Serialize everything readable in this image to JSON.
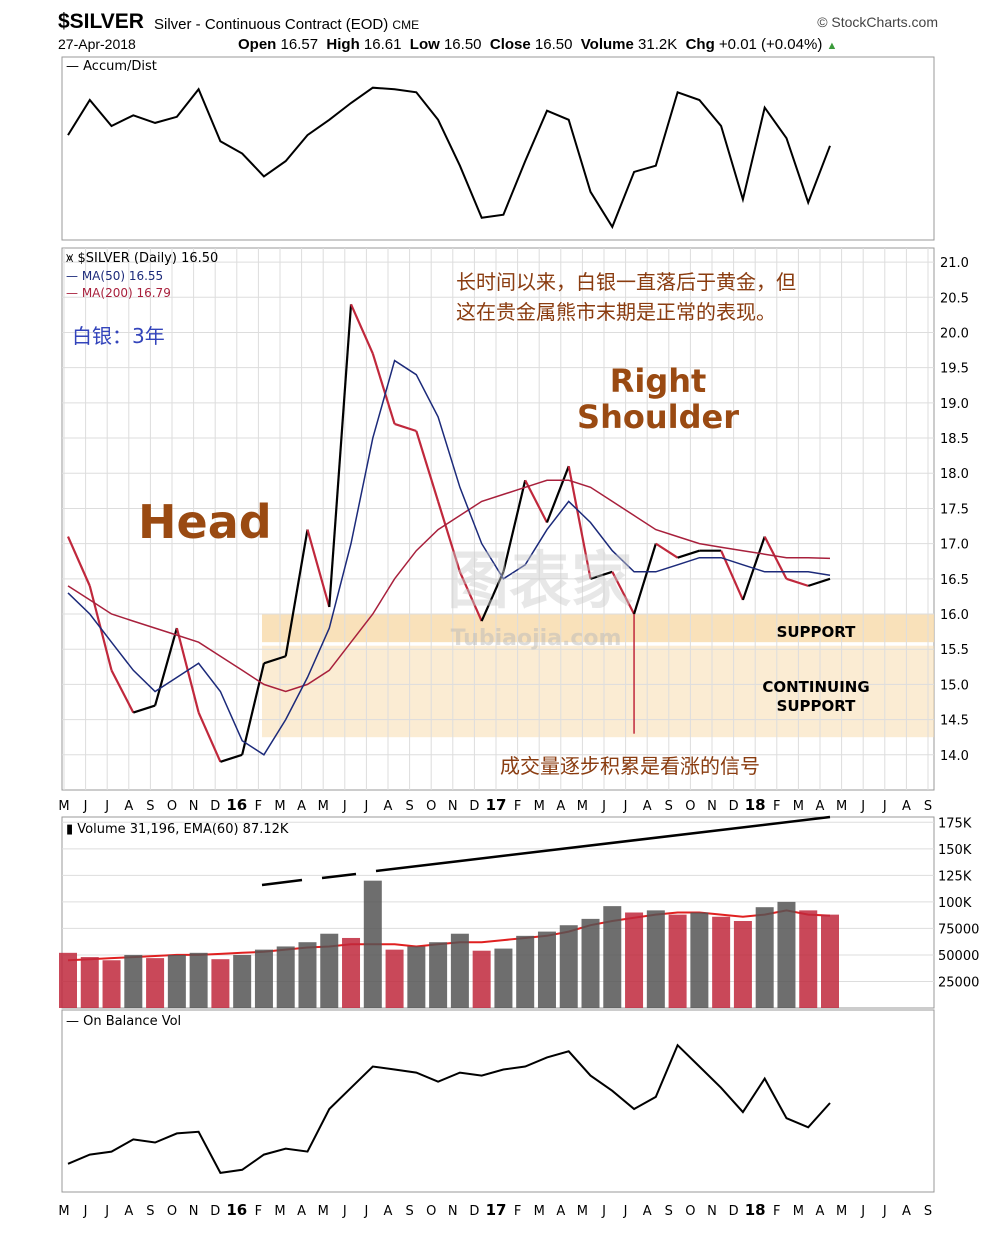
{
  "header": {
    "symbol": "$SILVER",
    "description": "Silver - Continuous Contract (EOD)",
    "exchange": "CME",
    "date": "27-Apr-2018",
    "open_label": "Open",
    "open": "16.57",
    "high_label": "High",
    "high": "16.61",
    "low_label": "Low",
    "low": "16.50",
    "close_label": "Close",
    "close": "16.50",
    "volume_label": "Volume",
    "volume": "31.2K",
    "chg_label": "Chg",
    "chg": "+0.01 (+0.04%)",
    "brand": "© StockCharts.com"
  },
  "panels": {
    "accum_legend": "Accum/Dist",
    "price_legend": "$SILVER (Daily) 16.50",
    "ma50_legend": "MA(50) 16.55",
    "ma200_legend": "MA(200) 16.79",
    "volume_legend": "Volume 31,196, EMA(60) 87.12K",
    "obv_legend": "On Balance Vol"
  },
  "annotations": {
    "subtitle_cn": "白银：3年",
    "note_line1": "长时间以来，白银一直落后于黄金，但",
    "note_line2": "这在贵金属熊市末期是正常的表现。",
    "right_shoulder_1": "Right",
    "right_shoulder_2": "Shoulder",
    "head": "Head",
    "support": "SUPPORT",
    "continuing_1": "CONTINUING",
    "continuing_2": "SUPPORT",
    "volume_note": "成交量逐步积累是看涨的信号",
    "watermark": "图表家",
    "watermark_sub": "Tubiaojia.com"
  },
  "colors": {
    "price": "#000000",
    "down_bar": "#c0283c",
    "ma50": "#1c2a7a",
    "ma200": "#a8203c",
    "support_band": "#f8dcae",
    "annotation": "#9a4a12",
    "note_text": "#8a3c10",
    "subtitle": "#3344bb",
    "volume_bar": "#c0283c",
    "volume_up_bar": "#555555",
    "grid": "#dddddd"
  },
  "chart_data": [
    {
      "type": "line",
      "name": "Accum/Dist",
      "x": [
        "2015-05",
        "2015-06",
        "2015-07",
        "2015-08",
        "2015-09",
        "2015-10",
        "2015-11",
        "2015-12",
        "2016-01",
        "2016-02",
        "2016-03",
        "2016-04",
        "2016-05",
        "2016-06",
        "2016-07",
        "2016-08",
        "2016-09",
        "2016-10",
        "2016-11",
        "2016-12",
        "2017-01",
        "2017-02",
        "2017-03",
        "2017-04",
        "2017-05",
        "2017-06",
        "2017-07",
        "2017-08",
        "2017-09",
        "2017-10",
        "2017-11",
        "2017-12",
        "2018-01",
        "2018-02",
        "2018-03",
        "2018-04"
      ],
      "values": [
        0.62,
        0.85,
        0.68,
        0.75,
        0.7,
        0.74,
        0.92,
        0.58,
        0.5,
        0.35,
        0.45,
        0.62,
        0.72,
        0.83,
        0.93,
        0.92,
        0.9,
        0.72,
        0.42,
        0.08,
        0.1,
        0.45,
        0.78,
        0.72,
        0.25,
        0.02,
        0.38,
        0.42,
        0.9,
        0.85,
        0.68,
        0.2,
        0.8,
        0.6,
        0.18,
        0.55
      ]
    },
    {
      "type": "line",
      "name": "$SILVER",
      "x": [
        "2015-05",
        "2015-06",
        "2015-07",
        "2015-08",
        "2015-09",
        "2015-10",
        "2015-11",
        "2015-12",
        "2016-01",
        "2016-02",
        "2016-03",
        "2016-04",
        "2016-05",
        "2016-06",
        "2016-07",
        "2016-08",
        "2016-09",
        "2016-10",
        "2016-11",
        "2016-12",
        "2017-01",
        "2017-02",
        "2017-03",
        "2017-04",
        "2017-05",
        "2017-06",
        "2017-07",
        "2017-08",
        "2017-09",
        "2017-10",
        "2017-11",
        "2017-12",
        "2018-01",
        "2018-02",
        "2018-03",
        "2018-04"
      ],
      "close": [
        17.1,
        16.4,
        15.2,
        14.6,
        14.7,
        15.8,
        14.6,
        13.9,
        14.0,
        15.3,
        15.4,
        17.2,
        16.1,
        20.4,
        19.7,
        18.7,
        18.6,
        17.6,
        16.6,
        15.9,
        16.6,
        17.9,
        17.3,
        18.1,
        16.5,
        16.6,
        16.0,
        17.0,
        16.8,
        16.9,
        16.9,
        16.2,
        17.1,
        16.5,
        16.4,
        16.5
      ],
      "ma50": [
        16.3,
        16.0,
        15.6,
        15.2,
        14.9,
        15.1,
        15.3,
        14.9,
        14.2,
        14.0,
        14.5,
        15.1,
        15.8,
        17.0,
        18.5,
        19.6,
        19.4,
        18.8,
        17.8,
        17.0,
        16.5,
        16.7,
        17.2,
        17.6,
        17.3,
        16.9,
        16.6,
        16.6,
        16.7,
        16.8,
        16.8,
        16.7,
        16.6,
        16.6,
        16.6,
        16.55
      ],
      "ma200": [
        16.4,
        16.2,
        16.0,
        15.9,
        15.8,
        15.7,
        15.6,
        15.4,
        15.2,
        15.0,
        14.9,
        15.0,
        15.2,
        15.6,
        16.0,
        16.5,
        16.9,
        17.2,
        17.4,
        17.6,
        17.7,
        17.8,
        17.9,
        17.9,
        17.8,
        17.6,
        17.4,
        17.2,
        17.1,
        17.0,
        16.95,
        16.9,
        16.85,
        16.8,
        16.8,
        16.79
      ],
      "ylim": [
        13.5,
        21.2
      ],
      "y_ticks": [
        "14.0",
        "14.5",
        "15.0",
        "15.5",
        "16.0",
        "16.5",
        "17.0",
        "17.5",
        "18.0",
        "18.5",
        "19.0",
        "19.5",
        "20.0",
        "20.5",
        "21.0"
      ],
      "support_band": [
        15.6,
        16.0
      ],
      "continuing_support_band": [
        14.25,
        15.55
      ]
    },
    {
      "type": "bar",
      "name": "Volume",
      "x": [
        "2015-05",
        "2015-06",
        "2015-07",
        "2015-08",
        "2015-09",
        "2015-10",
        "2015-11",
        "2015-12",
        "2016-01",
        "2016-02",
        "2016-03",
        "2016-04",
        "2016-05",
        "2016-06",
        "2016-07",
        "2016-08",
        "2016-09",
        "2016-10",
        "2016-11",
        "2016-12",
        "2017-01",
        "2017-02",
        "2017-03",
        "2017-04",
        "2017-05",
        "2017-06",
        "2017-07",
        "2017-08",
        "2017-09",
        "2017-10",
        "2017-11",
        "2017-12",
        "2018-01",
        "2018-02",
        "2018-03",
        "2018-04"
      ],
      "values": [
        52000,
        48000,
        45000,
        50000,
        47000,
        50000,
        52000,
        46000,
        50000,
        55000,
        58000,
        62000,
        70000,
        66000,
        120000,
        55000,
        58000,
        62000,
        70000,
        54000,
        56000,
        68000,
        72000,
        78000,
        84000,
        96000,
        90000,
        92000,
        88000,
        90000,
        86000,
        82000,
        95000,
        100000,
        92000,
        88000
      ],
      "ema60": [
        45000,
        46000,
        47000,
        48000,
        49000,
        50000,
        50000,
        51000,
        52000,
        53000,
        55000,
        57000,
        58000,
        60000,
        60000,
        60000,
        58000,
        60000,
        62000,
        62000,
        64000,
        66000,
        68000,
        72000,
        78000,
        82000,
        85000,
        88000,
        90000,
        90000,
        88000,
        86000,
        88000,
        92000,
        88000,
        87120
      ],
      "ylim": [
        0,
        180000
      ],
      "y_ticks": [
        "25000",
        "50000",
        "75000",
        "100K",
        "125K",
        "150K",
        "175K"
      ]
    },
    {
      "type": "line",
      "name": "On Balance Vol",
      "x": [
        "2015-05",
        "2015-06",
        "2015-07",
        "2015-08",
        "2015-09",
        "2015-10",
        "2015-11",
        "2015-12",
        "2016-01",
        "2016-02",
        "2016-03",
        "2016-04",
        "2016-05",
        "2016-06",
        "2016-07",
        "2016-08",
        "2016-09",
        "2016-10",
        "2016-11",
        "2016-12",
        "2017-01",
        "2017-02",
        "2017-03",
        "2017-04",
        "2017-05",
        "2017-06",
        "2017-07",
        "2017-08",
        "2017-09",
        "2017-10",
        "2017-11",
        "2017-12",
        "2018-01",
        "2018-02",
        "2018-03",
        "2018-04"
      ],
      "values": [
        0.12,
        0.18,
        0.2,
        0.28,
        0.26,
        0.32,
        0.33,
        0.06,
        0.08,
        0.18,
        0.22,
        0.2,
        0.48,
        0.62,
        0.76,
        0.74,
        0.72,
        0.66,
        0.72,
        0.7,
        0.74,
        0.76,
        0.82,
        0.86,
        0.7,
        0.6,
        0.48,
        0.56,
        0.9,
        0.76,
        0.62,
        0.46,
        0.68,
        0.42,
        0.36,
        0.52
      ]
    }
  ],
  "x_axis_labels": [
    "M",
    "J",
    "J",
    "A",
    "S",
    "O",
    "N",
    "D",
    "16",
    "F",
    "M",
    "A",
    "M",
    "J",
    "J",
    "A",
    "S",
    "O",
    "N",
    "D",
    "17",
    "F",
    "M",
    "A",
    "M",
    "J",
    "J",
    "A",
    "S",
    "O",
    "N",
    "D",
    "18",
    "F",
    "M",
    "A",
    "M",
    "J",
    "J",
    "A",
    "S"
  ]
}
